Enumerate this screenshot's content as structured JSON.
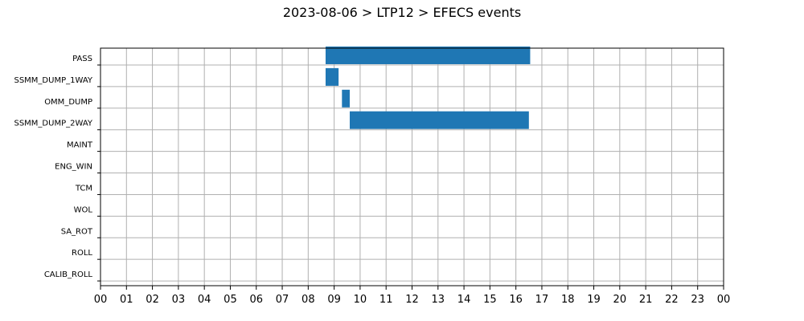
{
  "chart_data": {
    "type": "bar",
    "orientation": "horizontal-gantt",
    "title": "2023-08-06 > LTP12 > EFECS events",
    "xlabel": "",
    "ylabel": "",
    "x_unit": "hour of day",
    "xlim": [
      0,
      24
    ],
    "x_tick_labels": [
      "00",
      "01",
      "02",
      "03",
      "04",
      "05",
      "06",
      "07",
      "08",
      "09",
      "10",
      "11",
      "12",
      "13",
      "14",
      "15",
      "16",
      "17",
      "18",
      "19",
      "20",
      "21",
      "22",
      "23",
      "00"
    ],
    "categories": [
      "PASS",
      "SSMM_DUMP_1WAY",
      "OMM_DUMP",
      "SSMM_DUMP_2WAY",
      "MAINT",
      "ENG_WIN",
      "TCM",
      "WOL",
      "SA_ROT",
      "ROLL",
      "CALIB_ROLL"
    ],
    "grid": true,
    "bar_color": "#1f77b4",
    "events": [
      {
        "category": "PASS",
        "start": 8.67,
        "end": 16.55
      },
      {
        "category": "SSMM_DUMP_1WAY",
        "start": 8.67,
        "end": 9.17
      },
      {
        "category": "OMM_DUMP",
        "start": 9.3,
        "end": 9.6
      },
      {
        "category": "SSMM_DUMP_2WAY",
        "start": 9.6,
        "end": 16.5
      }
    ]
  }
}
